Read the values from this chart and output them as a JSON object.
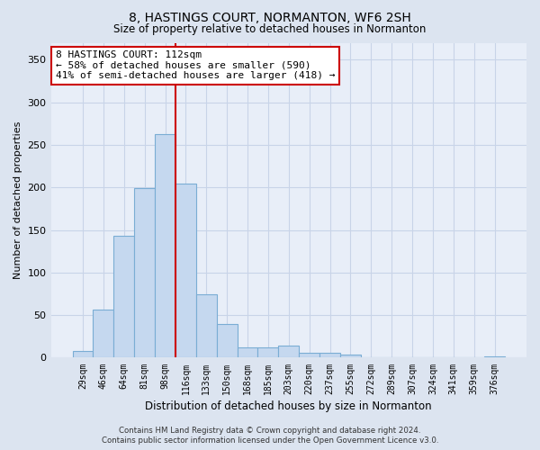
{
  "title": "8, HASTINGS COURT, NORMANTON, WF6 2SH",
  "subtitle": "Size of property relative to detached houses in Normanton",
  "xlabel": "Distribution of detached houses by size in Normanton",
  "ylabel": "Number of detached properties",
  "bar_labels": [
    "29sqm",
    "46sqm",
    "64sqm",
    "81sqm",
    "98sqm",
    "116sqm",
    "133sqm",
    "150sqm",
    "168sqm",
    "185sqm",
    "203sqm",
    "220sqm",
    "237sqm",
    "255sqm",
    "272sqm",
    "289sqm",
    "307sqm",
    "324sqm",
    "341sqm",
    "359sqm",
    "376sqm"
  ],
  "bar_values": [
    8,
    57,
    143,
    199,
    263,
    205,
    75,
    40,
    12,
    12,
    14,
    6,
    6,
    4,
    0,
    0,
    0,
    0,
    0,
    0,
    2
  ],
  "bar_color": "#c5d8ef",
  "bar_edge_color": "#7aadd4",
  "ylim": [
    0,
    370
  ],
  "yticks": [
    0,
    50,
    100,
    150,
    200,
    250,
    300,
    350
  ],
  "vline_color": "#cc0000",
  "annotation_text": "8 HASTINGS COURT: 112sqm\n← 58% of detached houses are smaller (590)\n41% of semi-detached houses are larger (418) →",
  "annotation_box_color": "#ffffff",
  "annotation_box_edge_color": "#cc0000",
  "footer_line1": "Contains HM Land Registry data © Crown copyright and database right 2024.",
  "footer_line2": "Contains public sector information licensed under the Open Government Licence v3.0.",
  "grid_color": "#c8d4e8",
  "bg_color": "#dce4f0",
  "plot_bg_color": "#e8eef8"
}
